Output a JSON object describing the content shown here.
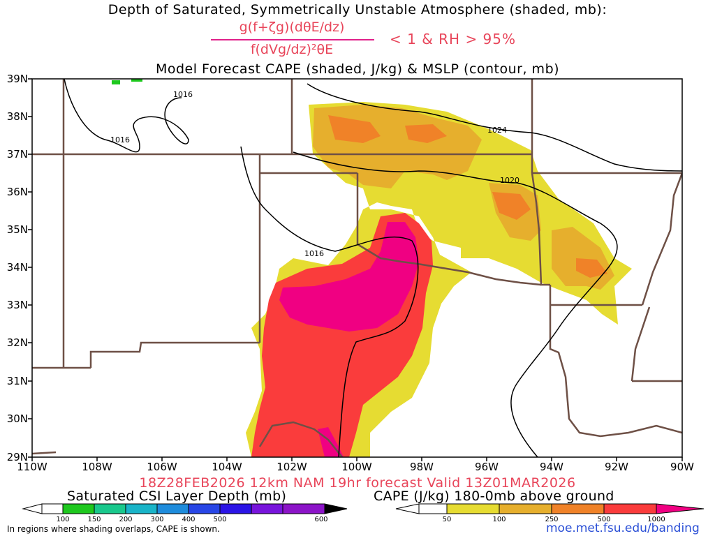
{
  "titles": {
    "line1": "Depth of Saturated, Symmetrically Unstable Atmosphere (shaded, mb):",
    "numerator": "g(f+ζg)(dθE/dz)",
    "denominator": "f(dVg/dz)²θE",
    "condition": "< 1 & RH > 95%",
    "line3": "Model Forecast CAPE (shaded, J/kg) & MSLP (contour, mb)",
    "valid": "18Z28FEB2026 12km NAM 19hr forecast Valid 13Z01MAR2026"
  },
  "lat_labels": [
    "39N",
    "38N",
    "37N",
    "36N",
    "35N",
    "34N",
    "33N",
    "32N",
    "31N",
    "30N",
    "29N"
  ],
  "lon_labels": [
    "110W",
    "108W",
    "106W",
    "104W",
    "102W",
    "100W",
    "98W",
    "96W",
    "94W",
    "92W",
    "90W"
  ],
  "isobars": [
    "1016",
    "1016",
    "1016",
    "1024",
    "1020"
  ],
  "colorbars": {
    "csi": {
      "title": "Saturated CSI Layer Depth (mb)",
      "labels": [
        "100",
        "150",
        "200",
        "300",
        "400",
        "500",
        "600"
      ],
      "colors": [
        "#ffffff",
        "#1ec81e",
        "#19c88c",
        "#19b4c8",
        "#1e8cdc",
        "#2846e6",
        "#2b14e6",
        "#7814dc",
        "#000000"
      ]
    },
    "cape": {
      "title": "CAPE (J/kg) 180-0mb above ground",
      "labels": [
        "50",
        "100",
        "250",
        "500",
        "1000"
      ],
      "colors": [
        "#ffffff",
        "#e6dc32",
        "#e6af2d",
        "#f08228",
        "#fa3c3c",
        "#f00082"
      ]
    }
  },
  "footer": {
    "note": "In regions where shading overlaps, CAPE is shown.",
    "url": "moe.met.fsu.edu/banding"
  }
}
